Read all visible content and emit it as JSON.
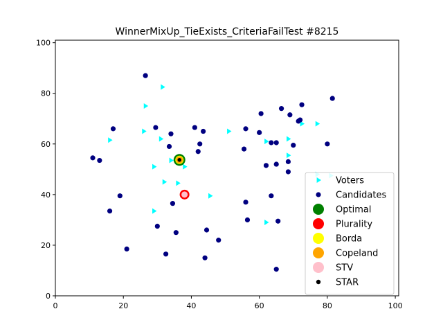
{
  "chart_data": {
    "type": "scatter",
    "title": "WinnerMixUp_TieExists_CriteriaFailTest #8215",
    "xlabel": "",
    "ylabel": "",
    "xlim": [
      0,
      101
    ],
    "ylim": [
      0,
      101
    ],
    "x_ticks": [
      0,
      20,
      40,
      60,
      80,
      100
    ],
    "y_ticks": [
      0,
      20,
      40,
      60,
      80,
      100
    ],
    "grid": false,
    "legend_position": "lower-right",
    "series": [
      {
        "name": "Voters",
        "marker": "triangle-right",
        "color": "#00ffff",
        "points": [
          [
            31.5,
            82.5
          ],
          [
            26.5,
            75
          ],
          [
            16,
            61.5
          ],
          [
            26,
            65
          ],
          [
            31,
            62
          ],
          [
            29,
            51
          ],
          [
            34,
            53.5
          ],
          [
            38,
            51
          ],
          [
            32,
            45
          ],
          [
            36,
            44.5
          ],
          [
            45.5,
            39.5
          ],
          [
            29,
            33.5
          ],
          [
            51,
            65
          ],
          [
            62,
            61
          ],
          [
            68.5,
            62
          ],
          [
            68.5,
            55.5
          ],
          [
            72.5,
            68
          ],
          [
            77,
            68
          ],
          [
            77,
            48
          ],
          [
            81,
            47.5
          ],
          [
            62,
            29
          ]
        ]
      },
      {
        "name": "Candidates",
        "marker": "circle",
        "color": "#000080",
        "points": [
          [
            26.5,
            87
          ],
          [
            17,
            66
          ],
          [
            11,
            54.5
          ],
          [
            13,
            53.5
          ],
          [
            19,
            39.5
          ],
          [
            16,
            33.5
          ],
          [
            21,
            18.5
          ],
          [
            29.5,
            66.5
          ],
          [
            34,
            64
          ],
          [
            33.5,
            59
          ],
          [
            41,
            66.5
          ],
          [
            43.5,
            65
          ],
          [
            42.5,
            60
          ],
          [
            42,
            57
          ],
          [
            30,
            27.5
          ],
          [
            34.5,
            36.5
          ],
          [
            35.5,
            25
          ],
          [
            32.5,
            16.5
          ],
          [
            44.5,
            26
          ],
          [
            44,
            15
          ],
          [
            48,
            22
          ],
          [
            56,
            66
          ],
          [
            55.5,
            58
          ],
          [
            60,
            64.5
          ],
          [
            60.5,
            72
          ],
          [
            65,
            60.5
          ],
          [
            66.5,
            74
          ],
          [
            69,
            71.5
          ],
          [
            71.5,
            69
          ],
          [
            72.5,
            75.5
          ],
          [
            81.5,
            78
          ],
          [
            80,
            60
          ],
          [
            70,
            59.5
          ],
          [
            63.5,
            60.5
          ],
          [
            62,
            51.5
          ],
          [
            65,
            52
          ],
          [
            68.5,
            53
          ],
          [
            68.5,
            49
          ],
          [
            63.5,
            39.5
          ],
          [
            56,
            37
          ],
          [
            56.5,
            30
          ],
          [
            65.5,
            29.5
          ],
          [
            65,
            10.5
          ],
          [
            72,
            69.5
          ]
        ]
      }
    ],
    "winners": [
      {
        "name": "Optimal",
        "x": 36.5,
        "y": 53.7,
        "color": "#008000"
      },
      {
        "name": "Plurality",
        "x": 38,
        "y": 40,
        "color": "#ff0000"
      },
      {
        "name": "Borda",
        "x": 36.5,
        "y": 53.7,
        "color": "#ffff00"
      },
      {
        "name": "Copeland",
        "x": 36.5,
        "y": 53.7,
        "color": "#ffa500"
      },
      {
        "name": "STV",
        "x": 38,
        "y": 40,
        "color": "#ffc0cb"
      },
      {
        "name": "STAR",
        "x": 36.5,
        "y": 53.7,
        "color": "#000000"
      }
    ]
  }
}
